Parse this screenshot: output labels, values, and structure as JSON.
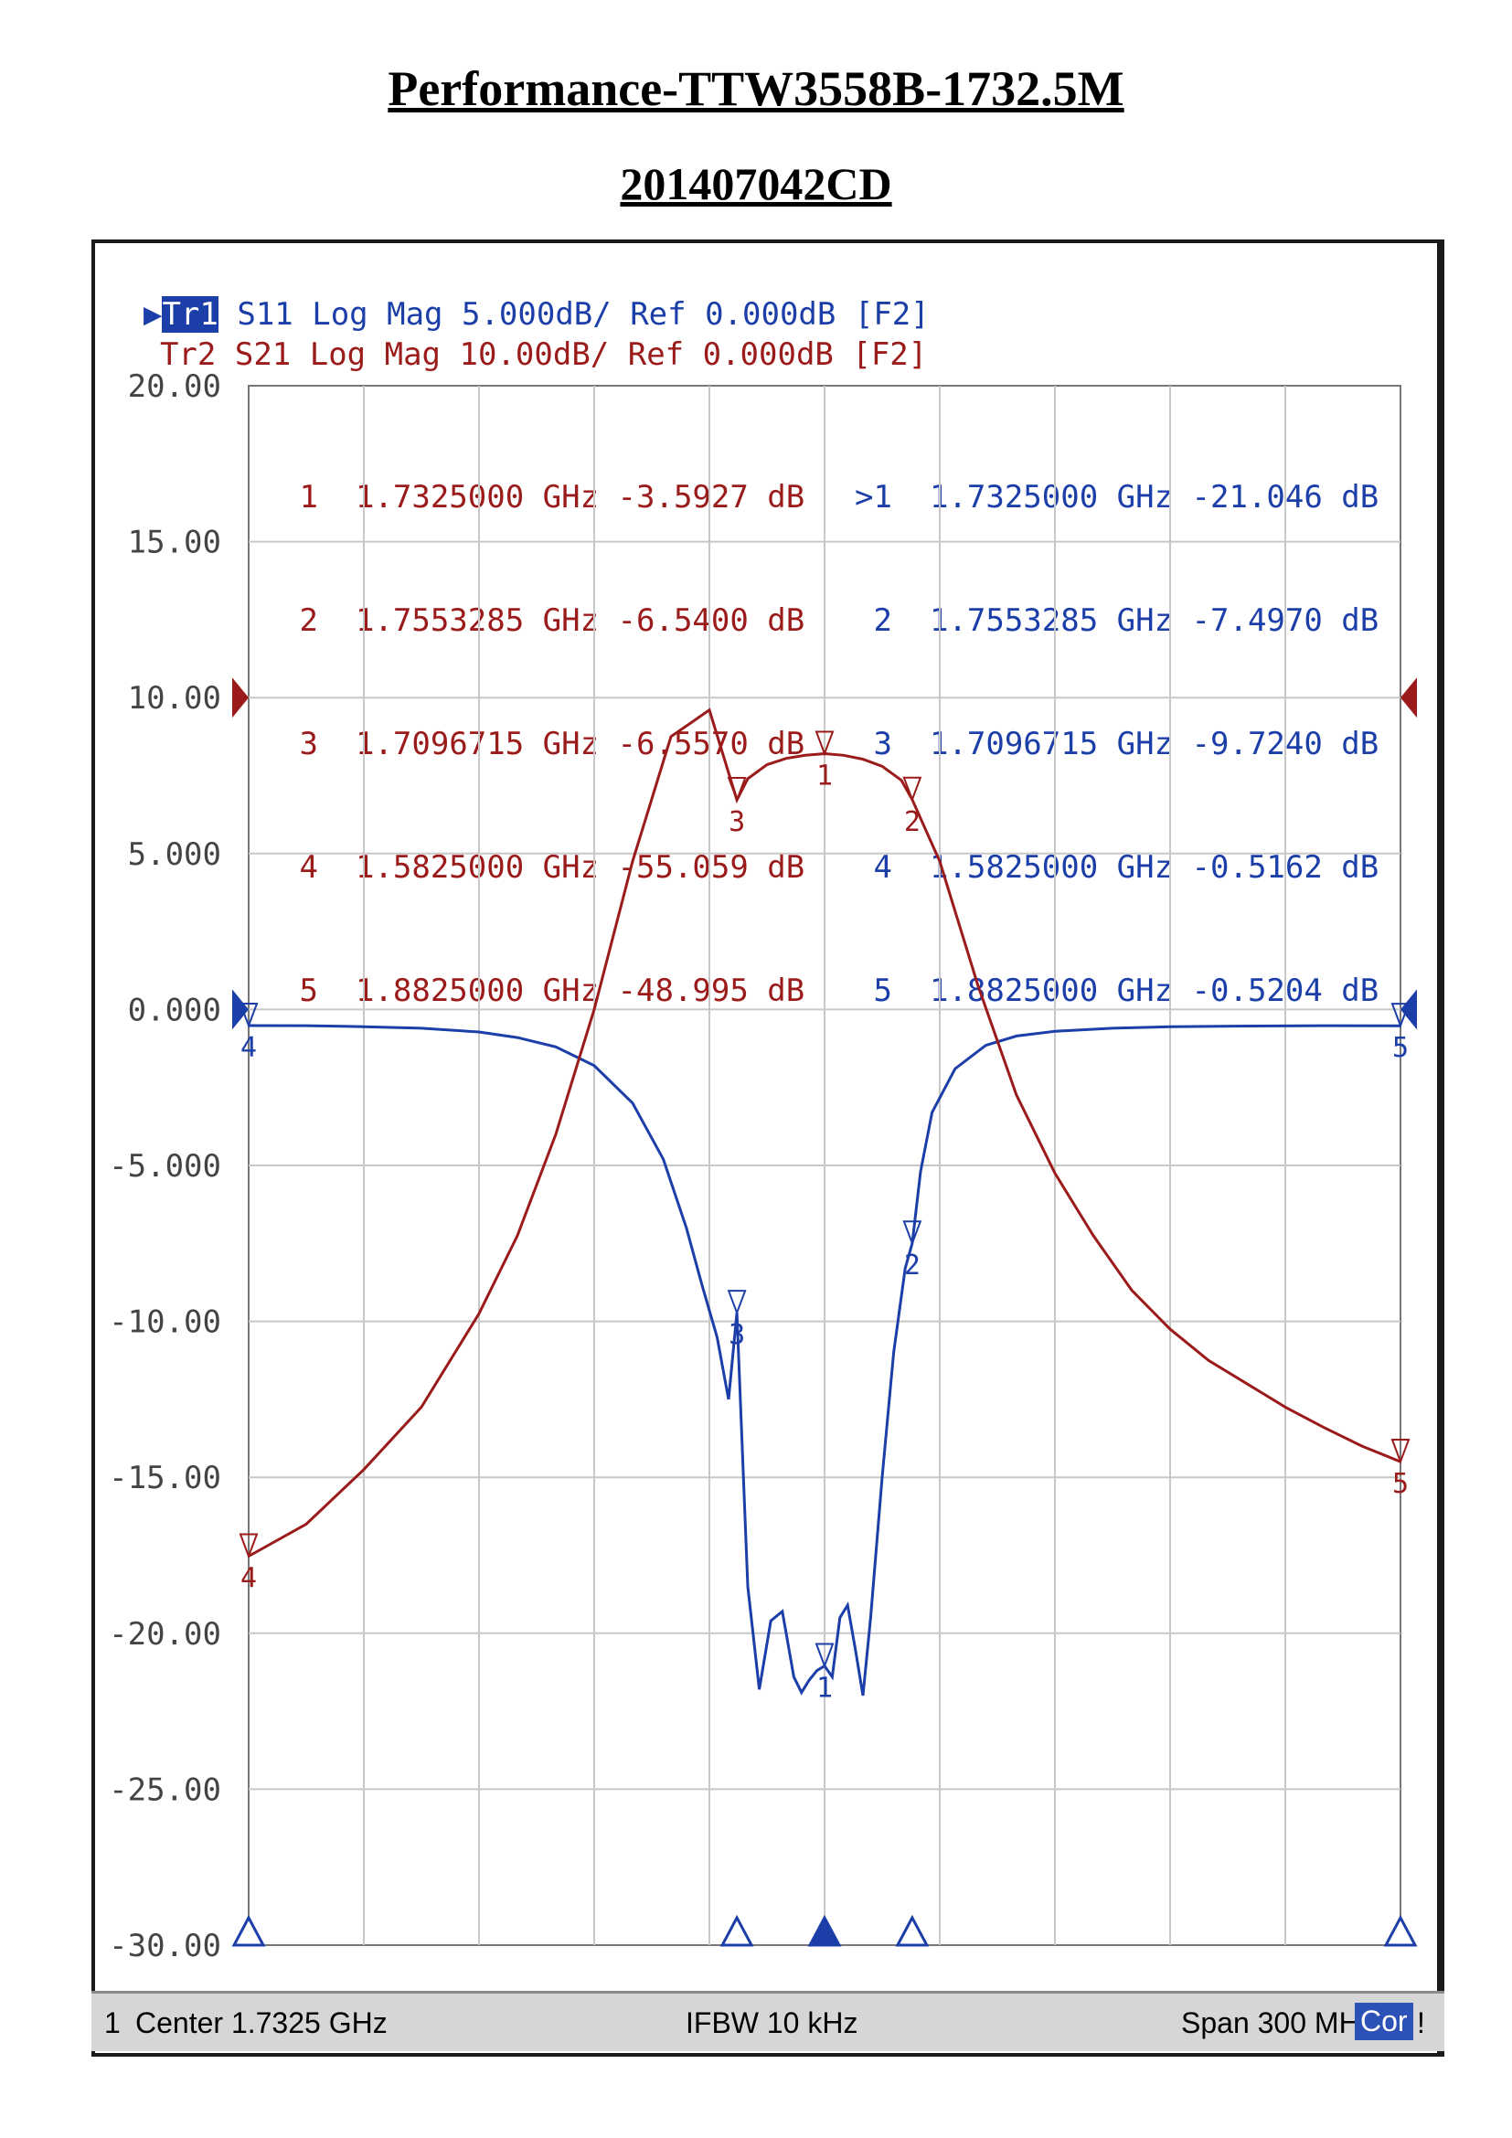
{
  "document": {
    "title": "Performance-TTW3558B-1732.5M",
    "subtitle": "201407042CD"
  },
  "colors": {
    "s11": "#1b3ea8",
    "s21": "#9b1a1a",
    "grid": "#c8c8c8",
    "tick_text": "#444444"
  },
  "traces": [
    {
      "label": "Tr1",
      "text": "S11 Log Mag 5.000dB/ Ref 0.000dB [F2]",
      "active": true
    },
    {
      "label": "Tr2",
      "text": "S21 Log Mag 10.00dB/ Ref 0.000dB [F2]",
      "active": false
    }
  ],
  "markers": {
    "s21": [
      {
        "num": "1",
        "freq": "1.7325000 GHz",
        "value": "-3.5927 dB"
      },
      {
        "num": "2",
        "freq": "1.7553285 GHz",
        "value": "-6.5400 dB"
      },
      {
        "num": "3",
        "freq": "1.7096715 GHz",
        "value": "-6.5570 dB"
      },
      {
        "num": "4",
        "freq": "1.5825000 GHz",
        "value": "-55.059 dB"
      },
      {
        "num": "5",
        "freq": "1.8825000 GHz",
        "value": "-48.995 dB"
      }
    ],
    "s11": [
      {
        "num": ">1",
        "freq": "1.7325000 GHz",
        "value": "-21.046 dB"
      },
      {
        "num": "2",
        "freq": "1.7553285 GHz",
        "value": "-7.4970 dB"
      },
      {
        "num": "3",
        "freq": "1.7096715 GHz",
        "value": "-9.7240 dB"
      },
      {
        "num": "4",
        "freq": "1.5825000 GHz",
        "value": "-0.5162 dB"
      },
      {
        "num": "5",
        "freq": "1.8825000 GHz",
        "value": "-0.5204 dB"
      }
    ]
  },
  "status": {
    "channel": "1",
    "center": "Center 1.7325 GHz",
    "ifbw": "IFBW 10 kHz",
    "span": "Span 300 MHz",
    "cor": "Cor",
    "flag": "!"
  },
  "chart_data": {
    "type": "line",
    "x_unit": "GHz",
    "xlim": [
      1.5825,
      1.8825
    ],
    "ylim": [
      -30,
      20
    ],
    "y_ticks": [
      "20.00",
      "15.00",
      "10.00",
      "5.000",
      "0.000",
      "-5.000",
      "-10.00",
      "-15.00",
      "-20.00",
      "-25.00",
      "-30.00"
    ],
    "grid": true,
    "series": [
      {
        "name": "S11",
        "axis": "5 dB/div",
        "x": [
          1.5825,
          1.5975,
          1.6125,
          1.6275,
          1.6425,
          1.6525,
          1.6625,
          1.6725,
          1.6825,
          1.6905,
          1.6965,
          1.7005,
          1.7045,
          1.7075,
          1.7096715,
          1.7125,
          1.7155,
          1.7185,
          1.7215,
          1.7245,
          1.7265,
          1.7285,
          1.7305,
          1.7325,
          1.7345,
          1.7365,
          1.7385,
          1.7405,
          1.7425,
          1.7445,
          1.7475,
          1.7505,
          1.7535,
          1.7553285,
          1.7575,
          1.7605,
          1.7665,
          1.7745,
          1.7825,
          1.7925,
          1.8075,
          1.8225,
          1.8425,
          1.8625,
          1.8825
        ],
        "y": [
          -0.5162,
          -0.52,
          -0.55,
          -0.6,
          -0.72,
          -0.9,
          -1.2,
          -1.8,
          -3.0,
          -4.8,
          -7.0,
          -8.8,
          -10.5,
          -12.5,
          -9.724,
          -18.5,
          -21.8,
          -19.6,
          -19.3,
          -21.4,
          -21.9,
          -21.5,
          -21.2,
          -21.046,
          -21.4,
          -19.5,
          -19.1,
          -20.5,
          -22.0,
          -19.5,
          -15.0,
          -11.0,
          -8.3,
          -7.497,
          -5.2,
          -3.3,
          -1.9,
          -1.15,
          -0.85,
          -0.7,
          -0.6,
          -0.55,
          -0.53,
          -0.52,
          -0.5204
        ]
      },
      {
        "name": "S21",
        "axis": "10 dB/div",
        "x": [
          1.5825,
          1.5975,
          1.6125,
          1.6275,
          1.6425,
          1.6525,
          1.6625,
          1.6725,
          1.6825,
          1.6925,
          1.7025,
          1.7096715,
          1.7125,
          1.7175,
          1.7225,
          1.7275,
          1.7325,
          1.7375,
          1.7425,
          1.7475,
          1.7525,
          1.7553285,
          1.7625,
          1.7725,
          1.7825,
          1.7925,
          1.8025,
          1.8125,
          1.8225,
          1.8325,
          1.8425,
          1.8525,
          1.8625,
          1.8725,
          1.8825
        ],
        "y": [
          -55.059,
          -53.0,
          -49.5,
          -45.5,
          -39.5,
          -34.5,
          -28.0,
          -20.0,
          -10.5,
          -2.5,
          -0.8,
          -6.557,
          -5.2,
          -4.3,
          -3.9,
          -3.7,
          -3.5927,
          -3.7,
          -3.95,
          -4.4,
          -5.3,
          -6.54,
          -10.5,
          -18.5,
          -25.5,
          -30.5,
          -34.5,
          -38.0,
          -40.5,
          -42.5,
          -44.0,
          -45.5,
          -46.8,
          -48.0,
          -48.995
        ]
      }
    ],
    "marker_x": [
      1.7325,
      1.7553285,
      1.7096715,
      1.5825,
      1.8825
    ],
    "marker_labels": [
      "1",
      "2",
      "3",
      "4",
      "5"
    ]
  }
}
